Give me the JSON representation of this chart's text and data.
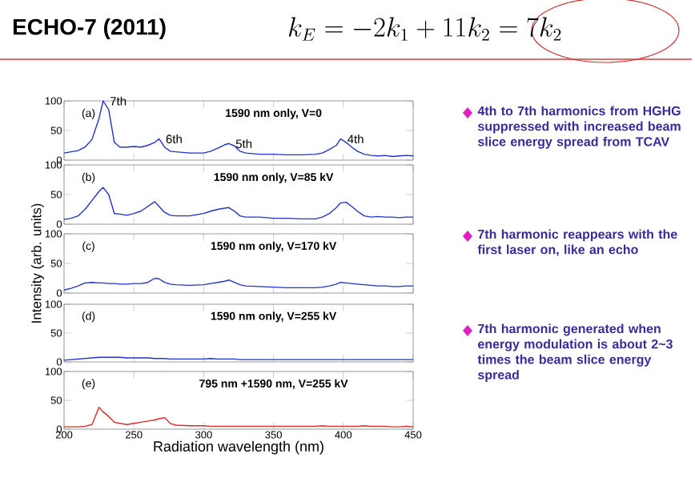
{
  "chart_data": [
    {
      "type": "line",
      "title": "1590 nm only, V=0",
      "annotations": [
        "(a)",
        {
          "text": "7th",
          "x": 228,
          "y": 100
        },
        {
          "text": "6th",
          "x": 268,
          "y": 36
        },
        {
          "text": "5th",
          "x": 318,
          "y": 28
        },
        {
          "text": "4th",
          "x": 398,
          "y": 36
        }
      ],
      "x": [
        200,
        205,
        210,
        215,
        220,
        225,
        228,
        232,
        236,
        240,
        245,
        250,
        255,
        260,
        265,
        268,
        272,
        276,
        280,
        290,
        300,
        305,
        310,
        315,
        318,
        322,
        326,
        330,
        340,
        350,
        360,
        370,
        380,
        385,
        390,
        395,
        398,
        402,
        406,
        410,
        415,
        420,
        425,
        430,
        435,
        440,
        445,
        450
      ],
      "series": [
        {
          "color": "#2233cc",
          "values": [
            12,
            14,
            16,
            22,
            35,
            70,
            100,
            85,
            30,
            22,
            22,
            23,
            22,
            25,
            30,
            36,
            22,
            15,
            14,
            12,
            12,
            15,
            20,
            26,
            28,
            24,
            15,
            12,
            10,
            10,
            9,
            9,
            10,
            12,
            18,
            25,
            36,
            30,
            22,
            15,
            10,
            8,
            7,
            8,
            6,
            7,
            8,
            7
          ]
        }
      ],
      "xlim": [
        200,
        450
      ],
      "ylim": [
        0,
        100
      ],
      "xticks": [
        200,
        250,
        300,
        350,
        400,
        450
      ],
      "yticks": [
        0,
        50,
        100
      ],
      "tick_labels": "y"
    },
    {
      "type": "line",
      "title": "1590 nm only, V=85 kV",
      "annotations": [
        "(b)"
      ],
      "x": [
        200,
        205,
        210,
        215,
        220,
        225,
        228,
        232,
        236,
        240,
        245,
        250,
        255,
        260,
        265,
        268,
        272,
        276,
        280,
        290,
        300,
        305,
        310,
        315,
        318,
        322,
        326,
        330,
        340,
        350,
        360,
        370,
        380,
        385,
        390,
        395,
        398,
        402,
        406,
        410,
        415,
        420,
        425,
        430,
        435,
        440,
        445,
        450
      ],
      "series": [
        {
          "color": "#2233cc",
          "values": [
            8,
            10,
            14,
            25,
            40,
            55,
            62,
            50,
            18,
            17,
            15,
            18,
            22,
            30,
            38,
            30,
            20,
            15,
            14,
            14,
            18,
            22,
            25,
            27,
            28,
            22,
            14,
            12,
            12,
            10,
            10,
            9,
            9,
            12,
            18,
            28,
            36,
            37,
            30,
            22,
            14,
            12,
            13,
            12,
            12,
            11,
            12,
            12
          ]
        }
      ],
      "xlim": [
        200,
        450
      ],
      "ylim": [
        0,
        100
      ],
      "xticks": [
        200,
        250,
        300,
        350,
        400,
        450
      ],
      "yticks": [
        0,
        50,
        100
      ],
      "tick_labels": "y"
    },
    {
      "type": "line",
      "title": "1590 nm only, V=170 kV",
      "ylabel": "Intensity (arb. units)",
      "annotations": [
        "(c)"
      ],
      "x": [
        200,
        205,
        210,
        215,
        220,
        225,
        228,
        232,
        236,
        240,
        245,
        250,
        255,
        260,
        265,
        268,
        272,
        276,
        280,
        290,
        300,
        305,
        310,
        315,
        318,
        322,
        326,
        330,
        340,
        350,
        360,
        370,
        380,
        385,
        390,
        395,
        398,
        402,
        406,
        410,
        415,
        420,
        425,
        430,
        435,
        440,
        445,
        450
      ],
      "series": [
        {
          "color": "#2233cc",
          "values": [
            5,
            8,
            12,
            17,
            18,
            17,
            17,
            16,
            16,
            15,
            15,
            16,
            16,
            18,
            25,
            24,
            18,
            15,
            14,
            13,
            14,
            16,
            18,
            20,
            22,
            18,
            14,
            12,
            11,
            10,
            9,
            9,
            9,
            10,
            12,
            15,
            18,
            17,
            16,
            15,
            14,
            13,
            12,
            12,
            11,
            11,
            12,
            12
          ]
        }
      ],
      "xlim": [
        200,
        450
      ],
      "ylim": [
        0,
        100
      ],
      "xticks": [
        200,
        250,
        300,
        350,
        400,
        450
      ],
      "yticks": [
        0,
        50,
        100
      ],
      "tick_labels": "y"
    },
    {
      "type": "line",
      "title": "1590 nm only, V=255 kV",
      "annotations": [
        "(d)"
      ],
      "x": [
        200,
        205,
        210,
        215,
        220,
        225,
        228,
        232,
        236,
        240,
        245,
        250,
        255,
        260,
        265,
        268,
        272,
        276,
        280,
        290,
        300,
        305,
        310,
        315,
        318,
        322,
        326,
        330,
        340,
        350,
        360,
        370,
        380,
        385,
        390,
        395,
        398,
        402,
        406,
        410,
        415,
        420,
        425,
        430,
        435,
        440,
        445,
        450
      ],
      "series": [
        {
          "color": "#2233cc",
          "values": [
            3,
            4,
            5,
            6,
            7,
            8,
            8,
            8,
            8,
            8,
            7,
            7,
            7,
            7,
            6,
            6,
            6,
            5,
            5,
            5,
            5,
            6,
            5,
            5,
            5,
            5,
            4,
            4,
            4,
            4,
            4,
            4,
            4,
            4,
            4,
            4,
            4,
            4,
            4,
            4,
            4,
            4,
            4,
            4,
            4,
            4,
            4,
            4
          ]
        }
      ],
      "xlim": [
        200,
        450
      ],
      "ylim": [
        0,
        100
      ],
      "xticks": [
        200,
        250,
        300,
        350,
        400,
        450
      ],
      "yticks": [
        0,
        50,
        100
      ],
      "tick_labels": "y"
    },
    {
      "type": "line",
      "title": "795 nm +1590 nm, V=255 kV",
      "xlabel": "Radiation wavelength (nm)",
      "annotations": [
        "(e)"
      ],
      "x": [
        200,
        205,
        210,
        215,
        220,
        225,
        228,
        232,
        236,
        240,
        245,
        250,
        255,
        260,
        265,
        268,
        272,
        276,
        280,
        290,
        300,
        305,
        310,
        315,
        318,
        322,
        326,
        330,
        340,
        350,
        360,
        370,
        380,
        385,
        390,
        395,
        398,
        402,
        406,
        410,
        415,
        420,
        425,
        430,
        435,
        440,
        445,
        450
      ],
      "series": [
        {
          "color": "#e02828",
          "values": [
            4,
            4,
            4,
            5,
            8,
            38,
            30,
            22,
            12,
            10,
            8,
            10,
            12,
            14,
            16,
            18,
            20,
            10,
            7,
            6,
            6,
            5,
            5,
            5,
            5,
            5,
            5,
            5,
            5,
            5,
            5,
            5,
            5,
            6,
            5,
            5,
            5,
            5,
            5,
            5,
            6,
            5,
            5,
            5,
            4,
            4,
            5,
            4
          ]
        }
      ],
      "xlim": [
        200,
        450
      ],
      "ylim": [
        0,
        100
      ],
      "xticks": [
        200,
        250,
        300,
        350,
        400,
        450
      ],
      "yticks": [
        0,
        50,
        100
      ]
    },
    {
      "type": "other",
      "title": "ECHO-7 (2011)",
      "subtitle": "k_E = -2k_1 + 11k_2 = 7k_2",
      "annotations": [
        "4th to 7th harmonics from HGHG suppressed with increased beam slice energy spread from TCAV",
        "7th harmonic reappears with the first laser on, like an echo",
        "7th harmonic generated when energy modulation is about 2~3 times the beam slice energy spread"
      ]
    }
  ]
}
